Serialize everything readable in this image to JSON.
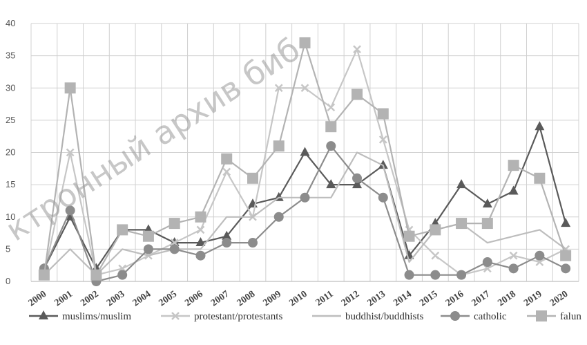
{
  "chart_data": {
    "type": "line",
    "title": "",
    "xlabel": "",
    "ylabel": "",
    "categories": [
      "2000",
      "2001",
      "2002",
      "2003",
      "2004",
      "2005",
      "2006",
      "2007",
      "2008",
      "2009",
      "2010",
      "2011",
      "2012",
      "2013",
      "2014",
      "2015",
      "2016",
      "2017",
      "2018",
      "2019",
      "2020"
    ],
    "ylim": [
      0,
      40
    ],
    "yticks": [
      0,
      5,
      10,
      15,
      20,
      25,
      30,
      35,
      40
    ],
    "grid": true,
    "legend_position": "bottom",
    "series": [
      {
        "name": "muslims/muslim",
        "marker": "triangle",
        "color": "#5a5a5a",
        "values": [
          2,
          10,
          2,
          8,
          8,
          6,
          6,
          7,
          12,
          13,
          20,
          15,
          15,
          18,
          4,
          9,
          15,
          12,
          14,
          24,
          9
        ]
      },
      {
        "name": "protestant/protestants",
        "marker": "x",
        "color": "#c6c6c6",
        "values": [
          1,
          20,
          1,
          2,
          4,
          6,
          8,
          17,
          10,
          30,
          30,
          27,
          36,
          22,
          8,
          4,
          1,
          2,
          4,
          3,
          5
        ]
      },
      {
        "name": "buddhist/buddhists",
        "marker": "none",
        "color": "#bdbdbd",
        "values": [
          1,
          5,
          1,
          5,
          4,
          5,
          5,
          10,
          10,
          13,
          13,
          13,
          20,
          18,
          3,
          8,
          9,
          6,
          7,
          8,
          5
        ]
      },
      {
        "name": "catholic",
        "marker": "circle",
        "color": "#8c8c8c",
        "values": [
          2,
          11,
          0,
          1,
          5,
          5,
          4,
          6,
          6,
          10,
          13,
          21,
          16,
          13,
          1,
          1,
          1,
          3,
          2,
          4,
          2
        ]
      },
      {
        "name": "falun",
        "marker": "square",
        "color": "#b3b3b3",
        "values": [
          1,
          30,
          1,
          8,
          7,
          9,
          10,
          19,
          16,
          21,
          37,
          24,
          29,
          26,
          7,
          8,
          9,
          9,
          18,
          16,
          4
        ]
      }
    ],
    "watermark": "ктронный архив биб"
  }
}
